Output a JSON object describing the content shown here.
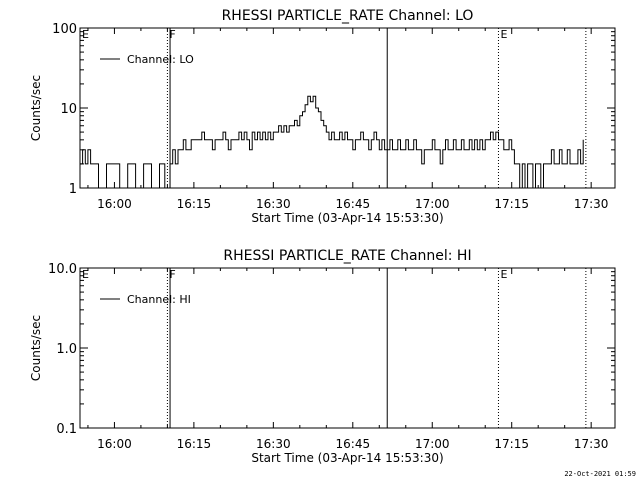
{
  "chart_data": [
    {
      "type": "line",
      "title": "RHESSI PARTICLE_RATE Channel: LO",
      "xlabel": "Start Time (03-Apr-14 15:53:30)",
      "ylabel": "Counts/sec",
      "y_scale": "log",
      "ylim": [
        1,
        100
      ],
      "y_tick_labels": [
        "1",
        "10",
        "100"
      ],
      "y_tick_values": [
        1,
        10,
        100
      ],
      "xlim": [
        "15:53:30",
        "17:34:30"
      ],
      "x_tick_labels": [
        "16:00",
        "16:15",
        "16:30",
        "16:45",
        "17:00",
        "17:15",
        "17:30"
      ],
      "x_tick_values": [
        "16:00",
        "16:15",
        "16:30",
        "16:45",
        "17:00",
        "17:15",
        "17:30"
      ],
      "legend": {
        "entries": [
          "Channel: LO"
        ],
        "position": "top-left"
      },
      "grid": false,
      "markers": [
        {
          "label": "E",
          "time": "15:53:30",
          "style": "dotted"
        },
        {
          "label": "F",
          "time": "16:10:00",
          "style": "dotted"
        },
        {
          "label": "",
          "time": "16:10:30",
          "style": "solid"
        },
        {
          "label": "",
          "time": "16:51:30",
          "style": "solid"
        },
        {
          "label": "E",
          "time": "17:12:30",
          "style": "dotted"
        },
        {
          "label": "",
          "time": "17:29:00",
          "style": "dotted"
        }
      ],
      "series": [
        {
          "name": "Channel: LO",
          "points": [
            [
              "15:53:30",
              2
            ],
            [
              "15:54:00",
              3
            ],
            [
              "15:54:30",
              2
            ],
            [
              "15:55:00",
              3
            ],
            [
              "15:55:30",
              2
            ],
            [
              "15:56:30",
              2
            ],
            [
              "15:57:00",
              1
            ],
            [
              "15:58:00",
              1
            ],
            [
              "15:58:30",
              2
            ],
            [
              "16:00:30",
              2
            ],
            [
              "16:01:00",
              1
            ],
            [
              "16:02:00",
              1
            ],
            [
              "16:02:30",
              2
            ],
            [
              "16:03:30",
              2
            ],
            [
              "16:04:00",
              1
            ],
            [
              "16:05:00",
              1
            ],
            [
              "16:05:30",
              2
            ],
            [
              "16:06:30",
              2
            ],
            [
              "16:07:00",
              1
            ],
            [
              "16:08:00",
              1
            ],
            [
              "16:08:30",
              2
            ],
            [
              "16:09:00",
              2
            ],
            [
              "16:09:30",
              1
            ],
            [
              "16:10:30",
              2
            ],
            [
              "16:11:00",
              3
            ],
            [
              "16:11:30",
              2
            ],
            [
              "16:12:00",
              3
            ],
            [
              "16:12:30",
              3
            ],
            [
              "16:13:00",
              4
            ],
            [
              "16:13:30",
              3
            ],
            [
              "16:14:00",
              3
            ],
            [
              "16:14:30",
              4
            ],
            [
              "16:15:00",
              4
            ],
            [
              "16:16:00",
              4
            ],
            [
              "16:16:30",
              5
            ],
            [
              "16:17:00",
              4
            ],
            [
              "16:18:00",
              4
            ],
            [
              "16:18:30",
              3
            ],
            [
              "16:19:00",
              4
            ],
            [
              "16:20:00",
              4
            ],
            [
              "16:20:30",
              5
            ],
            [
              "16:21:00",
              4
            ],
            [
              "16:21:30",
              3
            ],
            [
              "16:22:00",
              4
            ],
            [
              "16:23:00",
              4
            ],
            [
              "16:23:30",
              5
            ],
            [
              "16:24:00",
              4
            ],
            [
              "16:24:30",
              5
            ],
            [
              "16:25:00",
              4
            ],
            [
              "16:25:30",
              3
            ],
            [
              "16:26:00",
              5
            ],
            [
              "16:26:30",
              4
            ],
            [
              "16:27:00",
              5
            ],
            [
              "16:27:30",
              4
            ],
            [
              "16:28:00",
              5
            ],
            [
              "16:28:30",
              4
            ],
            [
              "16:29:00",
              5
            ],
            [
              "16:29:30",
              4
            ],
            [
              "16:30:00",
              5
            ],
            [
              "16:30:30",
              5
            ],
            [
              "16:31:00",
              6
            ],
            [
              "16:31:30",
              5
            ],
            [
              "16:32:00",
              6
            ],
            [
              "16:32:30",
              5
            ],
            [
              "16:33:00",
              6
            ],
            [
              "16:33:30",
              6
            ],
            [
              "16:34:00",
              7
            ],
            [
              "16:34:30",
              6
            ],
            [
              "16:35:00",
              8
            ],
            [
              "16:35:30",
              9
            ],
            [
              "16:36:00",
              11
            ],
            [
              "16:36:30",
              14
            ],
            [
              "16:37:00",
              12
            ],
            [
              "16:37:30",
              14
            ],
            [
              "16:38:00",
              10
            ],
            [
              "16:38:30",
              9
            ],
            [
              "16:39:00",
              7
            ],
            [
              "16:39:30",
              6
            ],
            [
              "16:40:00",
              5
            ],
            [
              "16:40:30",
              4
            ],
            [
              "16:41:00",
              5
            ],
            [
              "16:41:30",
              4
            ],
            [
              "16:42:00",
              4
            ],
            [
              "16:42:30",
              5
            ],
            [
              "16:43:00",
              4
            ],
            [
              "16:43:30",
              5
            ],
            [
              "16:44:00",
              4
            ],
            [
              "16:44:30",
              4
            ],
            [
              "16:45:00",
              3
            ],
            [
              "16:45:30",
              4
            ],
            [
              "16:46:00",
              4
            ],
            [
              "16:46:30",
              5
            ],
            [
              "16:47:00",
              4
            ],
            [
              "16:47:30",
              4
            ],
            [
              "16:48:00",
              3
            ],
            [
              "16:48:30",
              4
            ],
            [
              "16:49:00",
              5
            ],
            [
              "16:49:30",
              4
            ],
            [
              "16:50:00",
              3
            ],
            [
              "16:50:30",
              4
            ],
            [
              "16:51:00",
              3
            ],
            [
              "16:51:30",
              3
            ],
            [
              "16:52:00",
              4
            ],
            [
              "16:52:30",
              3
            ],
            [
              "16:53:00",
              3
            ],
            [
              "16:53:30",
              4
            ],
            [
              "16:54:00",
              3
            ],
            [
              "16:54:30",
              3
            ],
            [
              "16:55:00",
              4
            ],
            [
              "16:55:30",
              3
            ],
            [
              "16:56:00",
              3
            ],
            [
              "16:56:30",
              4
            ],
            [
              "16:57:00",
              3
            ],
            [
              "16:57:30",
              3
            ],
            [
              "16:58:00",
              2
            ],
            [
              "16:58:30",
              3
            ],
            [
              "16:59:00",
              3
            ],
            [
              "16:59:30",
              3
            ],
            [
              "17:00:00",
              4
            ],
            [
              "17:00:30",
              3
            ],
            [
              "17:01:00",
              3
            ],
            [
              "17:01:30",
              2
            ],
            [
              "17:02:00",
              3
            ],
            [
              "17:02:30",
              4
            ],
            [
              "17:03:00",
              3
            ],
            [
              "17:03:30",
              3
            ],
            [
              "17:04:00",
              4
            ],
            [
              "17:04:30",
              3
            ],
            [
              "17:05:00",
              3
            ],
            [
              "17:05:30",
              4
            ],
            [
              "17:06:00",
              3
            ],
            [
              "17:06:30",
              3
            ],
            [
              "17:07:00",
              4
            ],
            [
              "17:07:30",
              3
            ],
            [
              "17:08:00",
              4
            ],
            [
              "17:08:30",
              3
            ],
            [
              "17:09:00",
              4
            ],
            [
              "17:09:30",
              3
            ],
            [
              "17:10:00",
              4
            ],
            [
              "17:10:30",
              4
            ],
            [
              "17:11:00",
              5
            ],
            [
              "17:11:30",
              4
            ],
            [
              "17:12:00",
              5
            ],
            [
              "17:12:30",
              4
            ],
            [
              "17:13:00",
              4
            ],
            [
              "17:13:30",
              3
            ],
            [
              "17:14:00",
              3
            ],
            [
              "17:14:30",
              4
            ],
            [
              "17:15:00",
              3
            ],
            [
              "17:15:30",
              2
            ],
            [
              "17:16:00",
              2
            ],
            [
              "17:16:30",
              1
            ],
            [
              "17:17:00",
              2
            ],
            [
              "17:17:30",
              1
            ],
            [
              "17:18:00",
              2
            ],
            [
              "17:18:30",
              2
            ],
            [
              "17:19:00",
              1
            ],
            [
              "17:19:30",
              2
            ],
            [
              "17:20:00",
              2
            ],
            [
              "17:20:30",
              1
            ],
            [
              "17:21:00",
              2
            ],
            [
              "17:22:00",
              2
            ],
            [
              "17:22:30",
              3
            ],
            [
              "17:23:00",
              2
            ],
            [
              "17:23:30",
              2
            ],
            [
              "17:24:00",
              3
            ],
            [
              "17:24:30",
              2
            ],
            [
              "17:25:00",
              2
            ],
            [
              "17:25:30",
              3
            ],
            [
              "17:26:00",
              2
            ],
            [
              "17:27:00",
              2
            ],
            [
              "17:27:30",
              3
            ],
            [
              "17:28:00",
              2
            ],
            [
              "17:28:30",
              4
            ]
          ]
        }
      ]
    },
    {
      "type": "line",
      "title": "RHESSI PARTICLE_RATE Channel: HI",
      "xlabel": "Start Time (03-Apr-14 15:53:30)",
      "ylabel": "Counts/sec",
      "y_scale": "log",
      "ylim": [
        0.1,
        10
      ],
      "y_tick_labels": [
        "0.1",
        "1.0",
        "10.0"
      ],
      "y_tick_values": [
        0.1,
        1,
        10
      ],
      "xlim": [
        "15:53:30",
        "17:34:30"
      ],
      "x_tick_labels": [
        "16:00",
        "16:15",
        "16:30",
        "16:45",
        "17:00",
        "17:15",
        "17:30"
      ],
      "x_tick_values": [
        "16:00",
        "16:15",
        "16:30",
        "16:45",
        "17:00",
        "17:15",
        "17:30"
      ],
      "legend": {
        "entries": [
          "Channel: HI"
        ],
        "position": "top-left"
      },
      "grid": false,
      "markers": [
        {
          "label": "E",
          "time": "15:53:30",
          "style": "dotted"
        },
        {
          "label": "F",
          "time": "16:10:00",
          "style": "dotted"
        },
        {
          "label": "",
          "time": "16:10:30",
          "style": "solid"
        },
        {
          "label": "",
          "time": "16:51:30",
          "style": "solid"
        },
        {
          "label": "E",
          "time": "17:12:30",
          "style": "dotted"
        },
        {
          "label": "",
          "time": "17:29:00",
          "style": "dotted"
        }
      ],
      "series": [
        {
          "name": "Channel: HI",
          "points": []
        }
      ]
    }
  ],
  "footer": {
    "timestamp": "22-Oct-2021 01:59"
  }
}
